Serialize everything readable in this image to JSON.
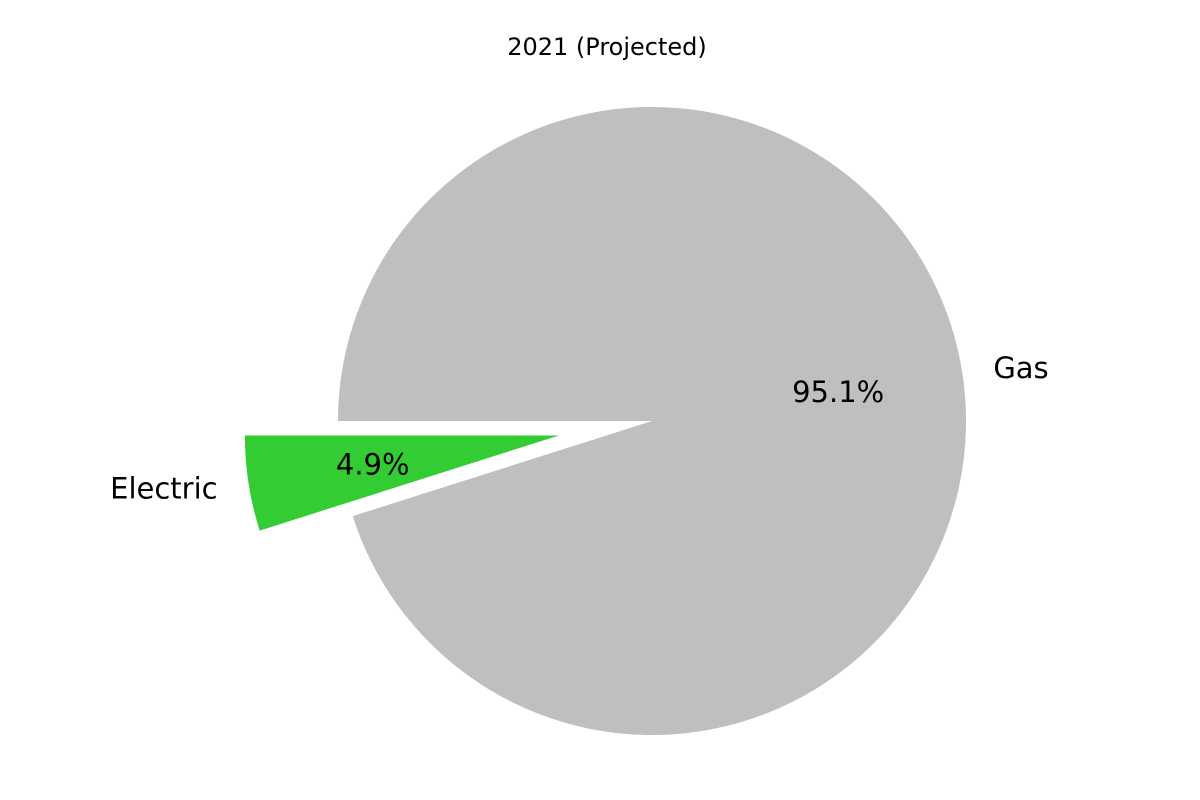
{
  "chart_data": {
    "type": "pie",
    "title": "2021 (Projected)",
    "slices": [
      {
        "label": "Electric",
        "value": 4.9,
        "pct_label": "4.9%",
        "color": "#33cc33",
        "exploded": true
      },
      {
        "label": "Gas",
        "value": 95.1,
        "pct_label": "95.1%",
        "color": "#bfbfbf",
        "exploded": false
      }
    ],
    "start_angle_deg": 180,
    "direction": "counterclockwise",
    "legend": "none"
  }
}
